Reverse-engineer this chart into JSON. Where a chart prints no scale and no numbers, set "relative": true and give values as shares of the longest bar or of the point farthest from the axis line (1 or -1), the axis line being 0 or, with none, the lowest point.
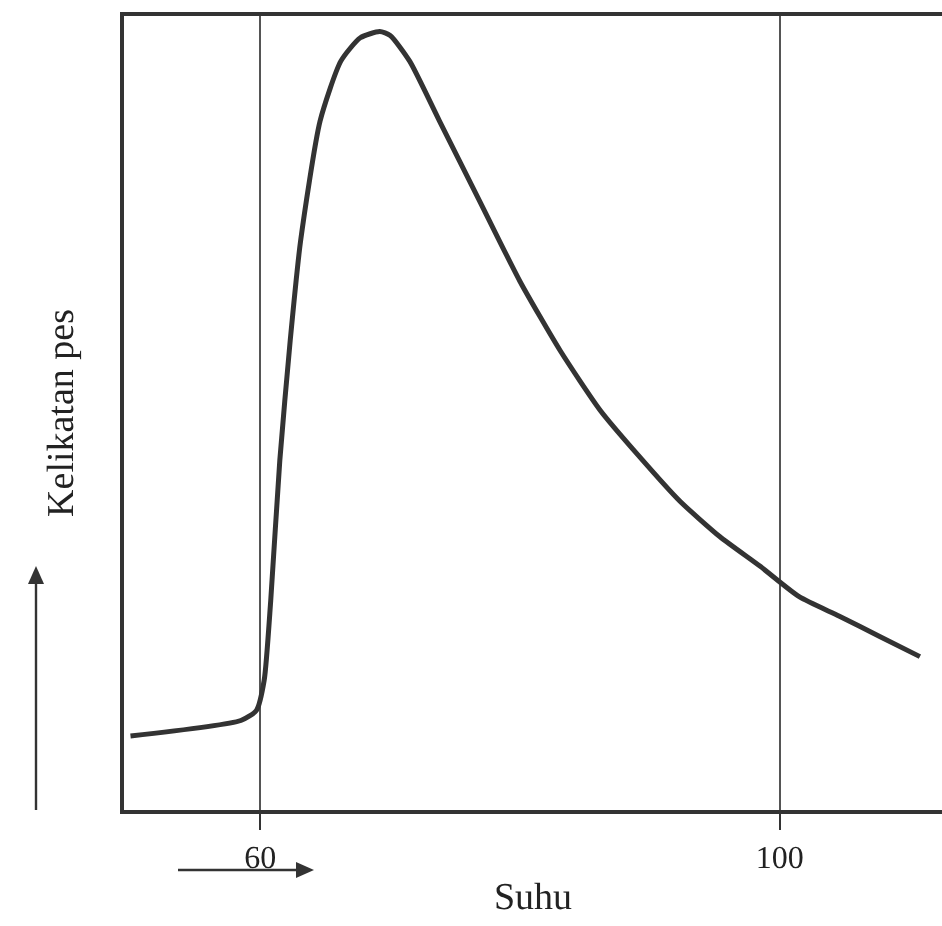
{
  "chart_data": {
    "type": "line",
    "xlabel": "Suhu",
    "ylabel": "Kelikatan pes",
    "relative": true,
    "xlim": [
      49.5,
      112.5
    ],
    "xticks": [
      60,
      100
    ],
    "grid": "x",
    "marker": "none",
    "line_style": "solid",
    "series": [
      {
        "color": "#333333",
        "x": [
          50,
          58.5,
          59.7,
          60.3,
          60.8,
          61.5,
          62.3,
          63.1,
          64.6,
          66.2,
          67.7,
          69.2,
          70,
          71.5,
          73.8,
          76.9,
          80,
          83.1,
          86.2,
          89.2,
          92.3,
          95.4,
          98.5,
          101.5,
          104.6,
          107.7,
          110.8
        ],
        "values": [
          0.095,
          0.115,
          0.128,
          0.167,
          0.269,
          0.449,
          0.603,
          0.731,
          0.885,
          0.962,
          0.992,
          1,
          0.995,
          0.962,
          0.885,
          0.782,
          0.679,
          0.59,
          0.513,
          0.454,
          0.397,
          0.351,
          0.313,
          0.274,
          0.249,
          0.223,
          0.197
        ]
      }
    ]
  }
}
